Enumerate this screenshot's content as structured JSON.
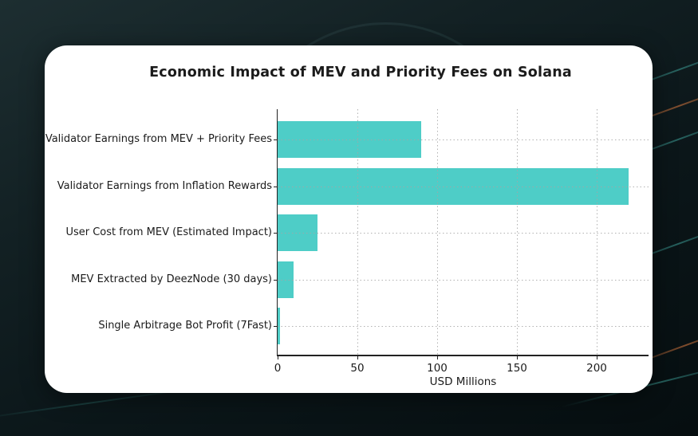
{
  "page": {
    "background_color": "#0b1619",
    "accent_teal": "#48beb4",
    "accent_orange": "#cd733c",
    "card_color": "#ffffff"
  },
  "chart_data": {
    "type": "bar",
    "orientation": "horizontal",
    "title": "Economic Impact of MEV and Priority Fees on Solana",
    "xlabel": "USD Millions",
    "ylabel": "",
    "categories": [
      "Validator Earnings from MEV + Priority Fees",
      "Validator Earnings from Inflation Rewards",
      "User Cost from MEV (Estimated Impact)",
      "MEV Extracted by DeezNode (30 days)",
      "Single Arbitrage Bot Profit (7Fast)"
    ],
    "values": [
      90,
      220,
      25,
      10,
      1.5
    ],
    "xticks": [
      0,
      50,
      100,
      150,
      200
    ],
    "xlim": [
      0,
      232.5
    ],
    "bar_color": "#4ECDC7",
    "grid": true,
    "legend": false
  }
}
